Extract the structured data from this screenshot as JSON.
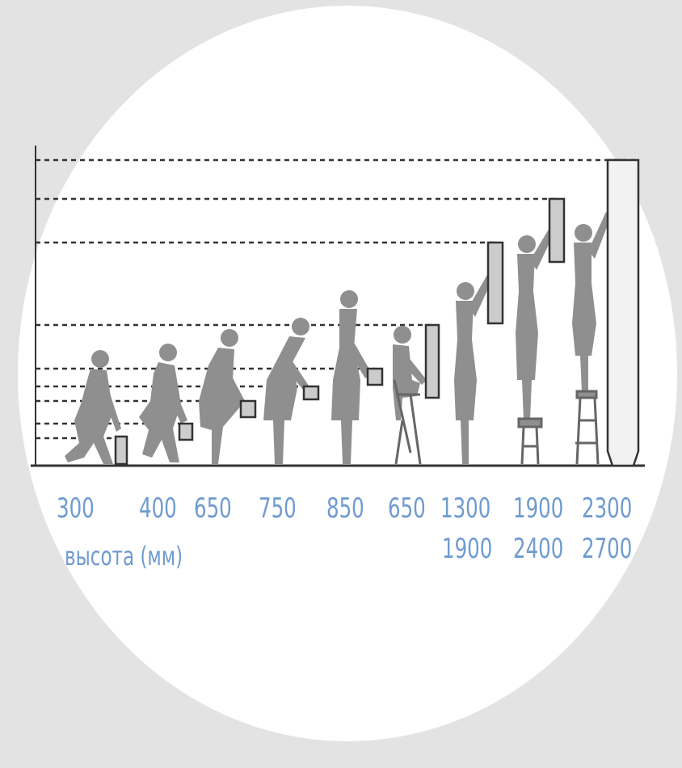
{
  "caption": "высота (мм)",
  "labels": [
    {
      "value": "300"
    },
    {
      "value": "400"
    },
    {
      "value": "650"
    },
    {
      "value": "750"
    },
    {
      "value": "850"
    },
    {
      "value": "650"
    },
    {
      "value": "1300",
      "value2": "1900"
    },
    {
      "value": "1900",
      "value2": "2400"
    },
    {
      "value": "2300",
      "value2": "2700"
    }
  ],
  "colors": {
    "background": "#e3e3e3",
    "circle": "#ffffff",
    "silhouette": "#8f8f8f",
    "box_fill": "#cccccc",
    "lines": "#333333",
    "label": "#6f9bd0"
  }
}
